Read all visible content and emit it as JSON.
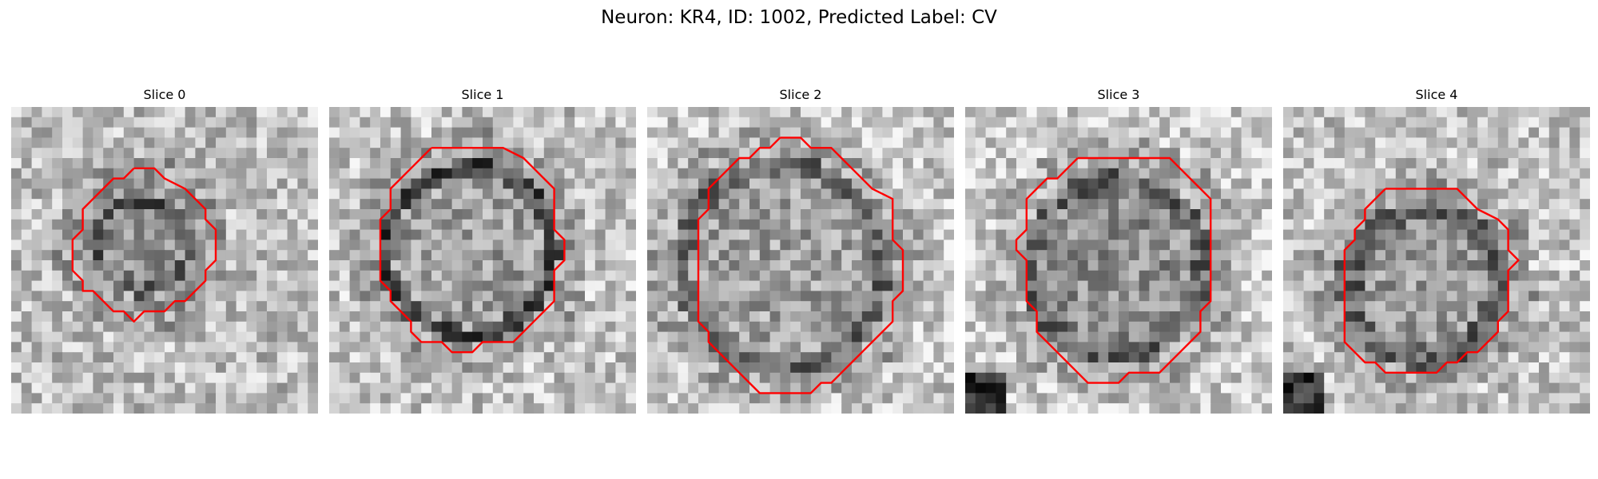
{
  "figure": {
    "title": "Neuron: KR4, ID: 1002, Predicted Label: CV"
  },
  "colors": {
    "contour": "#ff0000",
    "background": "#ffffff"
  },
  "colormap": "gray",
  "panels": [
    {
      "title": "Slice 0",
      "grid_size": 30,
      "contour": [
        [
          12,
          6
        ],
        [
          14,
          6
        ],
        [
          15,
          7
        ],
        [
          17,
          8
        ],
        [
          18,
          9
        ],
        [
          19,
          10
        ],
        [
          19,
          11
        ],
        [
          20,
          12
        ],
        [
          20,
          13
        ],
        [
          20,
          14
        ],
        [
          20,
          15
        ],
        [
          19,
          16
        ],
        [
          19,
          17
        ],
        [
          18,
          18
        ],
        [
          17,
          19
        ],
        [
          16,
          19
        ],
        [
          15,
          20
        ],
        [
          13,
          20
        ],
        [
          12,
          21
        ],
        [
          11,
          20
        ],
        [
          10,
          20
        ],
        [
          9,
          19
        ],
        [
          8,
          18
        ],
        [
          7,
          18
        ],
        [
          7,
          17
        ],
        [
          6,
          16
        ],
        [
          6,
          15
        ],
        [
          6,
          14
        ],
        [
          6,
          13
        ],
        [
          7,
          12
        ],
        [
          7,
          11
        ],
        [
          7,
          10
        ],
        [
          8,
          9
        ],
        [
          9,
          8
        ],
        [
          10,
          7
        ],
        [
          11,
          7
        ],
        [
          12,
          6
        ]
      ]
    },
    {
      "title": "Slice 1",
      "grid_size": 30,
      "contour": [
        [
          10,
          4
        ],
        [
          17,
          4
        ],
        [
          19,
          5
        ],
        [
          20,
          6
        ],
        [
          21,
          7
        ],
        [
          22,
          8
        ],
        [
          22,
          9
        ],
        [
          22,
          10
        ],
        [
          22,
          11
        ],
        [
          22,
          12
        ],
        [
          23,
          13
        ],
        [
          23,
          14
        ],
        [
          23,
          15
        ],
        [
          22,
          16
        ],
        [
          22,
          17
        ],
        [
          22,
          18
        ],
        [
          22,
          19
        ],
        [
          21,
          20
        ],
        [
          20,
          21
        ],
        [
          19,
          22
        ],
        [
          18,
          23
        ],
        [
          15,
          23
        ],
        [
          14,
          24
        ],
        [
          12,
          24
        ],
        [
          11,
          23
        ],
        [
          9,
          23
        ],
        [
          8,
          22
        ],
        [
          8,
          21
        ],
        [
          7,
          20
        ],
        [
          6,
          19
        ],
        [
          6,
          18
        ],
        [
          5,
          17
        ],
        [
          5,
          16
        ],
        [
          5,
          15
        ],
        [
          5,
          14
        ],
        [
          5,
          13
        ],
        [
          5,
          12
        ],
        [
          5,
          11
        ],
        [
          6,
          10
        ],
        [
          6,
          9
        ],
        [
          6,
          8
        ],
        [
          7,
          7
        ],
        [
          8,
          6
        ],
        [
          9,
          5
        ],
        [
          10,
          4
        ]
      ]
    },
    {
      "title": "Slice 2",
      "grid_size": 30,
      "contour": [
        [
          13,
          3
        ],
        [
          15,
          3
        ],
        [
          16,
          4
        ],
        [
          18,
          4
        ],
        [
          19,
          5
        ],
        [
          20,
          6
        ],
        [
          22,
          8
        ],
        [
          24,
          9
        ],
        [
          24,
          11
        ],
        [
          24,
          13
        ],
        [
          25,
          14
        ],
        [
          25,
          16
        ],
        [
          25,
          18
        ],
        [
          24,
          19
        ],
        [
          24,
          21
        ],
        [
          23,
          22
        ],
        [
          22,
          23
        ],
        [
          21,
          24
        ],
        [
          20,
          25
        ],
        [
          19,
          26
        ],
        [
          18,
          27
        ],
        [
          17,
          27
        ],
        [
          16,
          28
        ],
        [
          13,
          28
        ],
        [
          12,
          28
        ],
        [
          11,
          28
        ],
        [
          10,
          27
        ],
        [
          9,
          26
        ],
        [
          8,
          25
        ],
        [
          7,
          24
        ],
        [
          6,
          23
        ],
        [
          6,
          22
        ],
        [
          5,
          21
        ],
        [
          5,
          20
        ],
        [
          5,
          19
        ],
        [
          5,
          18
        ],
        [
          5,
          17
        ],
        [
          5,
          16
        ],
        [
          5,
          15
        ],
        [
          5,
          14
        ],
        [
          5,
          13
        ],
        [
          5,
          12
        ],
        [
          5,
          11
        ],
        [
          6,
          10
        ],
        [
          6,
          9
        ],
        [
          6,
          8
        ],
        [
          7,
          7
        ],
        [
          8,
          6
        ],
        [
          9,
          5
        ],
        [
          10,
          5
        ],
        [
          11,
          4
        ],
        [
          12,
          4
        ],
        [
          13,
          3
        ]
      ]
    },
    {
      "title": "Slice 3",
      "grid_size": 30,
      "contour": [
        [
          11,
          5
        ],
        [
          20,
          5
        ],
        [
          21,
          6
        ],
        [
          22,
          7
        ],
        [
          23,
          8
        ],
        [
          24,
          9
        ],
        [
          24,
          10
        ],
        [
          24,
          11
        ],
        [
          24,
          12
        ],
        [
          24,
          13
        ],
        [
          24,
          14
        ],
        [
          24,
          15
        ],
        [
          24,
          16
        ],
        [
          24,
          17
        ],
        [
          24,
          18
        ],
        [
          24,
          19
        ],
        [
          23,
          20
        ],
        [
          23,
          21
        ],
        [
          23,
          22
        ],
        [
          22,
          23
        ],
        [
          21,
          24
        ],
        [
          20,
          25
        ],
        [
          19,
          26
        ],
        [
          16,
          26
        ],
        [
          15,
          27
        ],
        [
          12,
          27
        ],
        [
          11,
          26
        ],
        [
          10,
          25
        ],
        [
          9,
          24
        ],
        [
          8,
          23
        ],
        [
          7,
          22
        ],
        [
          7,
          21
        ],
        [
          7,
          20
        ],
        [
          6,
          19
        ],
        [
          6,
          18
        ],
        [
          6,
          17
        ],
        [
          6,
          16
        ],
        [
          6,
          15
        ],
        [
          5,
          14
        ],
        [
          5,
          13
        ],
        [
          6,
          12
        ],
        [
          6,
          11
        ],
        [
          6,
          10
        ],
        [
          6,
          9
        ],
        [
          7,
          8
        ],
        [
          8,
          7
        ],
        [
          9,
          7
        ],
        [
          10,
          6
        ],
        [
          11,
          5
        ]
      ]
    },
    {
      "title": "Slice 4",
      "grid_size": 30,
      "contour": [
        [
          10,
          8
        ],
        [
          17,
          8
        ],
        [
          18,
          9
        ],
        [
          19,
          10
        ],
        [
          21,
          11
        ],
        [
          22,
          12
        ],
        [
          22,
          13
        ],
        [
          22,
          14
        ],
        [
          23,
          15
        ],
        [
          22,
          16
        ],
        [
          22,
          17
        ],
        [
          22,
          18
        ],
        [
          22,
          19
        ],
        [
          22,
          20
        ],
        [
          21,
          21
        ],
        [
          21,
          22
        ],
        [
          20,
          23
        ],
        [
          19,
          24
        ],
        [
          18,
          24
        ],
        [
          17,
          25
        ],
        [
          16,
          25
        ],
        [
          15,
          26
        ],
        [
          10,
          26
        ],
        [
          9,
          25
        ],
        [
          8,
          25
        ],
        [
          7,
          24
        ],
        [
          6,
          23
        ],
        [
          6,
          22
        ],
        [
          6,
          21
        ],
        [
          6,
          20
        ],
        [
          6,
          19
        ],
        [
          6,
          18
        ],
        [
          6,
          17
        ],
        [
          6,
          16
        ],
        [
          6,
          15
        ],
        [
          6,
          14
        ],
        [
          7,
          13
        ],
        [
          7,
          12
        ],
        [
          8,
          11
        ],
        [
          8,
          10
        ],
        [
          9,
          9
        ],
        [
          10,
          8
        ]
      ]
    }
  ]
}
